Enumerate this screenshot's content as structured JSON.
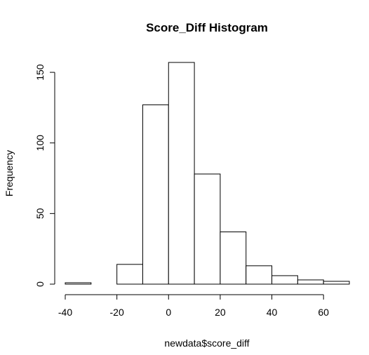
{
  "chart_data": {
    "type": "bar",
    "title": "Score_Diff Histogram",
    "xlabel": "newdata$score_diff",
    "ylabel": "Frequency",
    "bins": [
      {
        "start": -40,
        "end": -30,
        "count": 1
      },
      {
        "start": -30,
        "end": -20,
        "count": 0
      },
      {
        "start": -20,
        "end": -10,
        "count": 14
      },
      {
        "start": -10,
        "end": 0,
        "count": 127
      },
      {
        "start": 0,
        "end": 10,
        "count": 157
      },
      {
        "start": 10,
        "end": 20,
        "count": 78
      },
      {
        "start": 20,
        "end": 30,
        "count": 37
      },
      {
        "start": 30,
        "end": 40,
        "count": 13
      },
      {
        "start": 40,
        "end": 50,
        "count": 6
      },
      {
        "start": 50,
        "end": 60,
        "count": 3
      },
      {
        "start": 60,
        "end": 70,
        "count": 2
      }
    ],
    "xlim": [
      -40,
      70
    ],
    "ylim": [
      0,
      157
    ],
    "xticks": [
      -40,
      -20,
      0,
      20,
      40,
      60
    ],
    "yticks": [
      0,
      50,
      100,
      150
    ],
    "xtick_labels": [
      "-40",
      "-20",
      "0",
      "20",
      "40",
      "60"
    ],
    "ytick_labels": [
      "0",
      "50",
      "100",
      "150"
    ],
    "grid": false,
    "legend": "none",
    "bar_fill": "#ffffff",
    "bar_stroke": "#000000"
  }
}
